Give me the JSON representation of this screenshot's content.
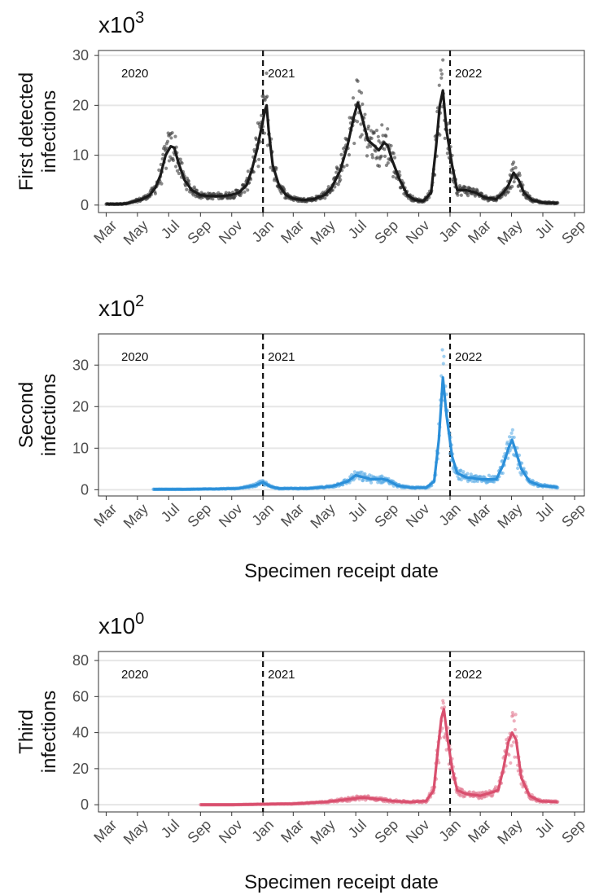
{
  "chart_data": [
    {
      "type": "scatter",
      "scale_label": "x10",
      "scale_exponent": "3",
      "ylabel_lines": [
        "First detected",
        "infections"
      ],
      "xlabel": "",
      "ylim": [
        -1.5,
        31
      ],
      "yticks": [
        0,
        10,
        20,
        30
      ],
      "color": "#1a1a1a",
      "point_color": "#3a3a3a",
      "x_domain": [
        "2020-02-15",
        "2022-09-20"
      ],
      "year_markers": [
        {
          "date": "2021-01-01",
          "label": "2021"
        },
        {
          "date": "2022-01-01",
          "label": "2022"
        }
      ],
      "year_labels": [
        {
          "date": "2020-03-15",
          "label": "2020"
        },
        {
          "date": "2021-01-01",
          "label": "2021"
        },
        {
          "date": "2022-01-01",
          "label": "2022"
        }
      ],
      "series": [
        {
          "kind": "line",
          "points": [
            [
              "2020-03-01",
              0.2
            ],
            [
              "2020-03-20",
              0.2
            ],
            [
              "2020-04-10",
              0.3
            ],
            [
              "2020-04-25",
              0.7
            ],
            [
              "2020-05-10",
              1.2
            ],
            [
              "2020-05-25",
              2
            ],
            [
              "2020-06-05",
              3.5
            ],
            [
              "2020-06-15",
              6
            ],
            [
              "2020-06-25",
              10
            ],
            [
              "2020-07-05",
              11.8
            ],
            [
              "2020-07-12",
              11.5
            ],
            [
              "2020-07-20",
              8.5
            ],
            [
              "2020-08-01",
              5
            ],
            [
              "2020-08-15",
              3
            ],
            [
              "2020-09-01",
              2
            ],
            [
              "2020-09-20",
              1.8
            ],
            [
              "2020-10-10",
              1.8
            ],
            [
              "2020-10-30",
              2
            ],
            [
              "2020-11-15",
              2.5
            ],
            [
              "2020-11-30",
              4
            ],
            [
              "2020-12-10",
              7
            ],
            [
              "2020-12-20",
              11
            ],
            [
              "2020-12-28",
              15
            ],
            [
              "2021-01-05",
              19
            ],
            [
              "2021-01-08",
              20
            ],
            [
              "2021-01-12",
              15
            ],
            [
              "2021-01-20",
              8
            ],
            [
              "2021-02-01",
              4
            ],
            [
              "2021-02-15",
              2
            ],
            [
              "2021-03-01",
              1.3
            ],
            [
              "2021-03-20",
              1
            ],
            [
              "2021-04-10",
              1.2
            ],
            [
              "2021-05-01",
              2
            ],
            [
              "2021-05-15",
              3.5
            ],
            [
              "2021-06-01",
              7
            ],
            [
              "2021-06-15",
              12
            ],
            [
              "2021-06-28",
              18
            ],
            [
              "2021-07-05",
              20.5
            ],
            [
              "2021-07-12",
              18
            ],
            [
              "2021-07-25",
              13
            ],
            [
              "2021-08-05",
              12
            ],
            [
              "2021-08-15",
              11
            ],
            [
              "2021-08-25",
              12.5
            ],
            [
              "2021-09-01",
              12
            ],
            [
              "2021-09-10",
              9
            ],
            [
              "2021-09-25",
              5
            ],
            [
              "2021-10-10",
              2
            ],
            [
              "2021-10-25",
              1
            ],
            [
              "2021-11-10",
              0.8
            ],
            [
              "2021-11-25",
              2.5
            ],
            [
              "2021-12-05",
              12
            ],
            [
              "2021-12-12",
              20
            ],
            [
              "2021-12-18",
              23
            ],
            [
              "2021-12-25",
              15
            ],
            [
              "2022-01-05",
              8
            ],
            [
              "2022-01-15",
              3
            ],
            [
              "2022-02-01",
              3
            ],
            [
              "2022-02-20",
              2.5
            ],
            [
              "2022-03-10",
              1.5
            ],
            [
              "2022-04-01",
              1.2
            ],
            [
              "2022-04-15",
              2.5
            ],
            [
              "2022-04-25",
              4
            ],
            [
              "2022-05-05",
              6.5
            ],
            [
              "2022-05-15",
              5
            ],
            [
              "2022-05-25",
              2.5
            ],
            [
              "2022-06-10",
              1
            ],
            [
              "2022-07-01",
              0.5
            ],
            [
              "2022-07-30",
              0.4
            ]
          ]
        }
      ]
    },
    {
      "type": "scatter",
      "scale_label": "x10",
      "scale_exponent": "2",
      "ylabel_lines": [
        "Second",
        "infections"
      ],
      "xlabel": "Specimen receipt date",
      "ylim": [
        -1.5,
        37.5
      ],
      "yticks": [
        0,
        10,
        20,
        30
      ],
      "color": "#2b8fd9",
      "point_color": "#5eaee6",
      "x_domain": [
        "2020-02-15",
        "2022-09-20"
      ],
      "year_markers": [
        {
          "date": "2021-01-01",
          "label": "2021"
        },
        {
          "date": "2022-01-01",
          "label": "2022"
        }
      ],
      "year_labels": [
        {
          "date": "2020-03-15",
          "label": "2020"
        },
        {
          "date": "2021-01-01",
          "label": "2021"
        },
        {
          "date": "2022-01-01",
          "label": "2022"
        }
      ],
      "series": [
        {
          "kind": "line",
          "points": [
            [
              "2020-06-01",
              0.1
            ],
            [
              "2020-08-01",
              0.1
            ],
            [
              "2020-10-01",
              0.2
            ],
            [
              "2020-11-15",
              0.3
            ],
            [
              "2020-12-15",
              1
            ],
            [
              "2021-01-01",
              1.8
            ],
            [
              "2021-01-15",
              0.8
            ],
            [
              "2021-02-01",
              0.3
            ],
            [
              "2021-04-01",
              0.3
            ],
            [
              "2021-05-15",
              0.8
            ],
            [
              "2021-06-15",
              2
            ],
            [
              "2021-07-01",
              3.5
            ],
            [
              "2021-07-15",
              3
            ],
            [
              "2021-08-01",
              2.5
            ],
            [
              "2021-08-20",
              2.6
            ],
            [
              "2021-09-01",
              2.3
            ],
            [
              "2021-09-20",
              1
            ],
            [
              "2021-10-15",
              0.5
            ],
            [
              "2021-11-15",
              0.5
            ],
            [
              "2021-12-01",
              2
            ],
            [
              "2021-12-10",
              12
            ],
            [
              "2021-12-18",
              27
            ],
            [
              "2021-12-25",
              18
            ],
            [
              "2022-01-05",
              8
            ],
            [
              "2022-01-15",
              4
            ],
            [
              "2022-02-01",
              3
            ],
            [
              "2022-03-01",
              2.5
            ],
            [
              "2022-04-01",
              2.5
            ],
            [
              "2022-04-15",
              6
            ],
            [
              "2022-04-25",
              10
            ],
            [
              "2022-05-02",
              12
            ],
            [
              "2022-05-10",
              9
            ],
            [
              "2022-05-20",
              5
            ],
            [
              "2022-06-05",
              2
            ],
            [
              "2022-06-25",
              1
            ],
            [
              "2022-07-30",
              0.6
            ]
          ]
        }
      ]
    },
    {
      "type": "scatter",
      "scale_label": "x10",
      "scale_exponent": "0",
      "ylabel_lines": [
        "Third",
        "infections"
      ],
      "xlabel": "Specimen receipt date",
      "ylim": [
        -4,
        85
      ],
      "yticks": [
        0,
        20,
        40,
        60,
        80
      ],
      "color": "#d94f6e",
      "point_color": "#e27b93",
      "x_domain": [
        "2020-02-15",
        "2022-09-20"
      ],
      "year_markers": [
        {
          "date": "2021-01-01",
          "label": "2021"
        },
        {
          "date": "2022-01-01",
          "label": "2022"
        }
      ],
      "year_labels": [
        {
          "date": "2020-03-15",
          "label": "2020"
        },
        {
          "date": "2021-01-01",
          "label": "2021"
        },
        {
          "date": "2022-01-01",
          "label": "2022"
        }
      ],
      "series": [
        {
          "kind": "line",
          "points": [
            [
              "2020-09-01",
              0
            ],
            [
              "2020-11-01",
              0
            ],
            [
              "2021-01-01",
              0.3
            ],
            [
              "2021-03-01",
              0.5
            ],
            [
              "2021-05-01",
              1.5
            ],
            [
              "2021-06-15",
              3
            ],
            [
              "2021-07-15",
              4
            ],
            [
              "2021-08-15",
              3
            ],
            [
              "2021-09-15",
              2
            ],
            [
              "2021-10-15",
              1.5
            ],
            [
              "2021-11-15",
              2
            ],
            [
              "2021-11-30",
              8
            ],
            [
              "2021-12-08",
              30
            ],
            [
              "2021-12-15",
              48
            ],
            [
              "2021-12-20",
              53
            ],
            [
              "2021-12-28",
              35
            ],
            [
              "2022-01-05",
              20
            ],
            [
              "2022-01-15",
              8
            ],
            [
              "2022-02-01",
              6
            ],
            [
              "2022-03-01",
              5
            ],
            [
              "2022-03-25",
              7
            ],
            [
              "2022-04-05",
              8
            ],
            [
              "2022-04-15",
              20
            ],
            [
              "2022-04-25",
              35
            ],
            [
              "2022-05-02",
              40
            ],
            [
              "2022-05-10",
              36
            ],
            [
              "2022-05-20",
              15
            ],
            [
              "2022-06-05",
              5
            ],
            [
              "2022-06-25",
              2
            ],
            [
              "2022-07-30",
              1.5
            ]
          ]
        }
      ]
    }
  ],
  "x_tick_labels": [
    "Mar",
    "May",
    "Jul",
    "Sep",
    "Nov",
    "Jan",
    "Mar",
    "May",
    "Jul",
    "Sep",
    "Nov",
    "Jan",
    "Mar",
    "May",
    "Jul",
    "Sep"
  ],
  "x_tick_dates": [
    "2020-03-01",
    "2020-05-01",
    "2020-07-01",
    "2020-09-01",
    "2020-11-01",
    "2021-01-01",
    "2021-03-01",
    "2021-05-01",
    "2021-07-01",
    "2021-09-01",
    "2021-11-01",
    "2022-01-01",
    "2022-03-01",
    "2022-05-01",
    "2022-07-01",
    "2022-09-01"
  ]
}
